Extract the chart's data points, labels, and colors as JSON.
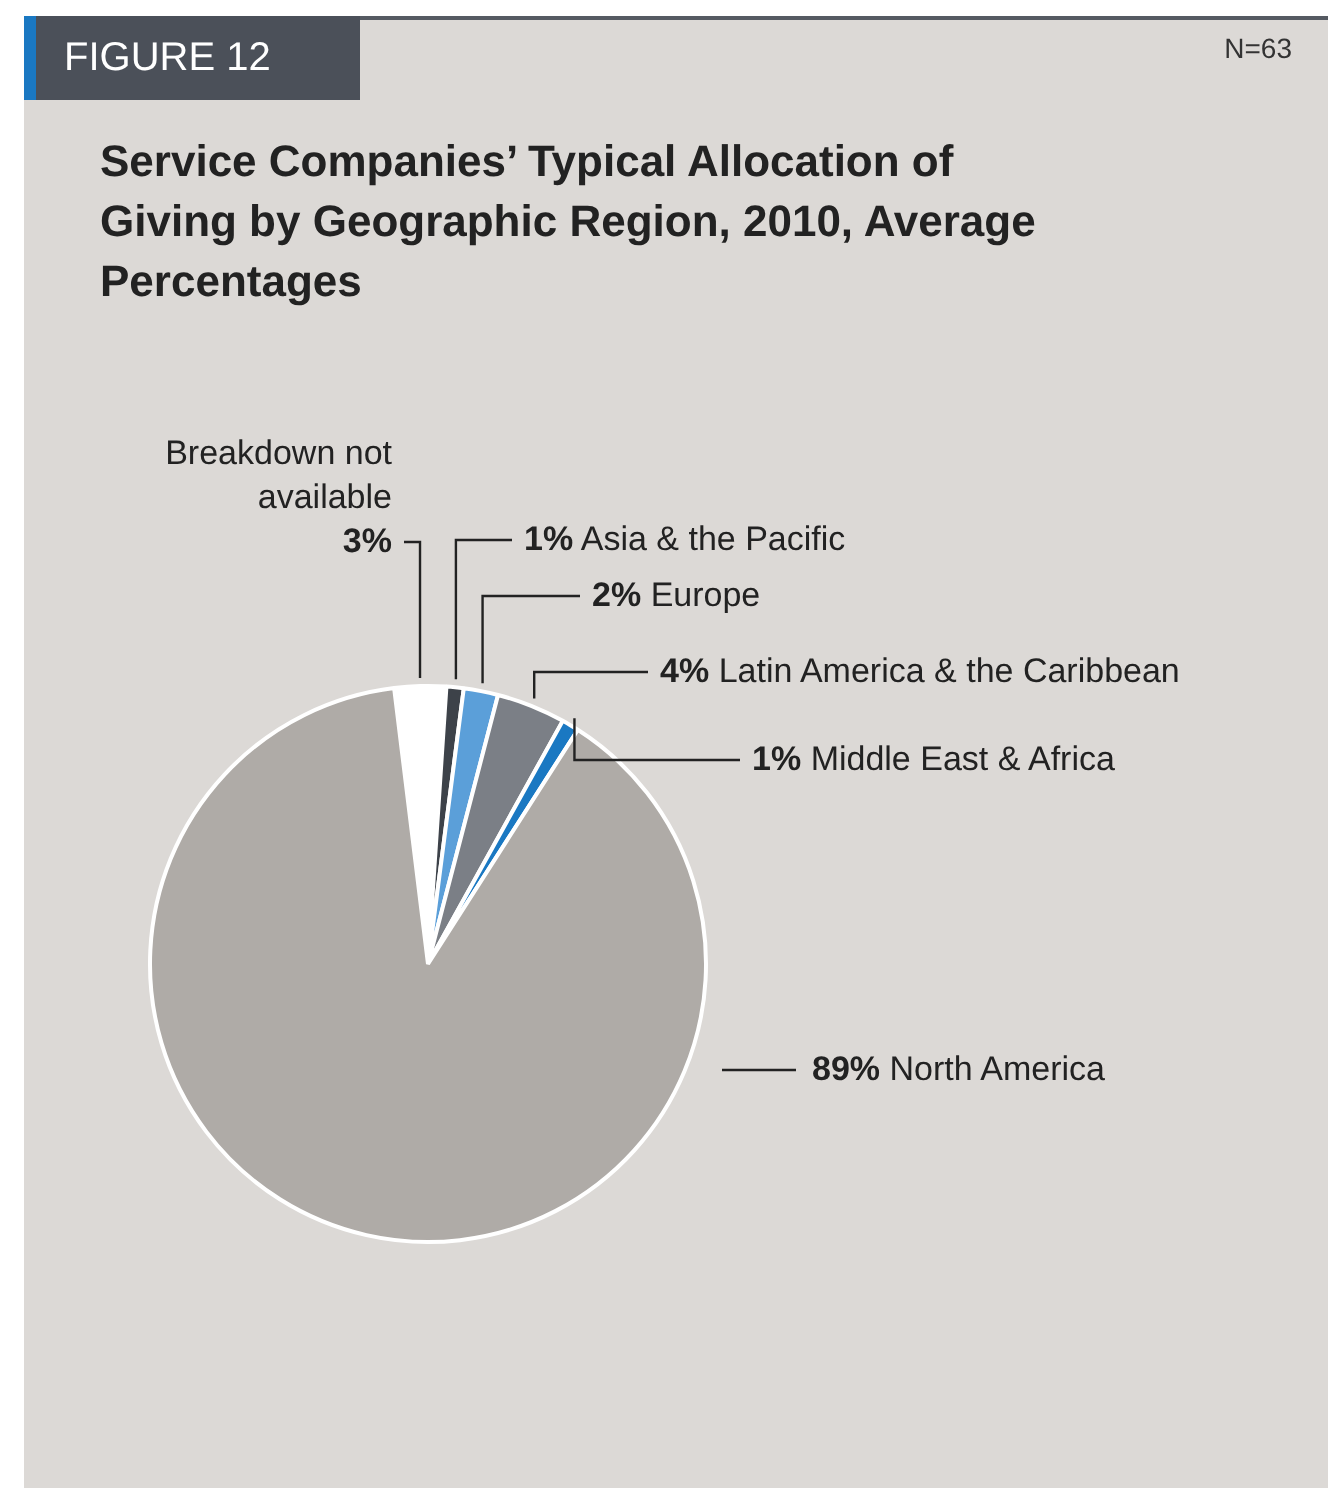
{
  "chart_data": {
    "type": "pie",
    "title": "Service Companies’ Typical Allocation of Giving by Geographic Region, 2010, Average Percentages",
    "annotations": [
      "FIGURE 12",
      "N=63"
    ],
    "categories": [
      "Breakdown not available",
      "Asia & the Pacific",
      "Europe",
      "Latin America & the Caribbean",
      "Middle East & Africa",
      "North America"
    ],
    "values": [
      3,
      1,
      2,
      4,
      1,
      89
    ],
    "value_labels": [
      "3%",
      "1%",
      "2%",
      "4%",
      "1%",
      "89%"
    ],
    "colors": [
      "#ffffff",
      "#3d4249",
      "#5b9fd9",
      "#7b7f86",
      "#1a78c2",
      "#afaba7"
    ],
    "legend": false
  }
}
